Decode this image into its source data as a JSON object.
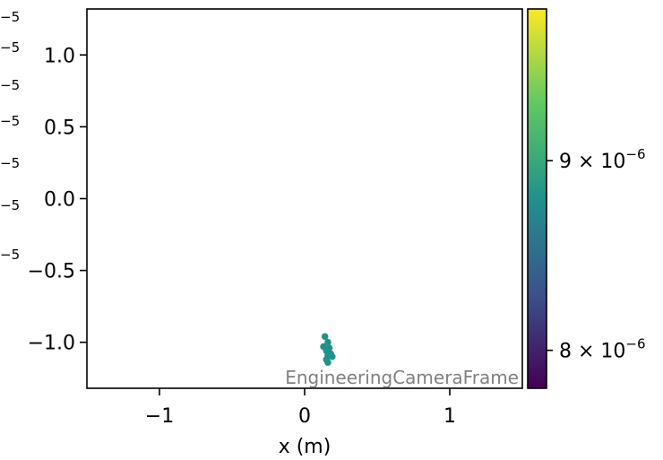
{
  "chart_data": {
    "type": "scatter",
    "title": "",
    "xlabel": "x  (m)",
    "ylabel": "",
    "xlim": [
      -1.5,
      1.5
    ],
    "ylim": [
      -1.32,
      1.32
    ],
    "x_ticks": [
      {
        "value": -1,
        "label": "−1"
      },
      {
        "value": 0,
        "label": "0"
      },
      {
        "value": 1,
        "label": "1"
      }
    ],
    "y_ticks": [
      {
        "value": 1.0,
        "label": "1.0"
      },
      {
        "value": 0.5,
        "label": "0.5"
      },
      {
        "value": 0.0,
        "label": "0.0"
      },
      {
        "value": -0.5,
        "label": "−0.5"
      },
      {
        "value": -1.0,
        "label": "−1.0"
      }
    ],
    "annotation": "EngineeringCameraFrame",
    "points": [
      {
        "x": 0.14,
        "y": -0.96
      },
      {
        "x": 0.16,
        "y": -1.0
      },
      {
        "x": 0.13,
        "y": -1.03
      },
      {
        "x": 0.17,
        "y": -1.04
      },
      {
        "x": 0.15,
        "y": -1.06
      },
      {
        "x": 0.18,
        "y": -1.08
      },
      {
        "x": 0.16,
        "y": -1.09
      },
      {
        "x": 0.19,
        "y": -1.1
      },
      {
        "x": 0.15,
        "y": -1.12
      },
      {
        "x": 0.16,
        "y": -1.14
      }
    ],
    "point_color": "#21918c",
    "colorbar": {
      "colormap": "viridis",
      "min": 7.8e-06,
      "max": 9.8e-06,
      "ticks": [
        {
          "value": 9e-06,
          "base": "9 × 10",
          "exp": "−6"
        },
        {
          "value": 8e-06,
          "base": "8 × 10",
          "exp": "−6"
        }
      ],
      "colors": [
        "#440154",
        "#3b528b",
        "#21918c",
        "#5ec962",
        "#fde725"
      ]
    },
    "clipped_left_labels": [
      "−5",
      "−5",
      "−5",
      "−5",
      "−5",
      "−5",
      "−5"
    ]
  }
}
